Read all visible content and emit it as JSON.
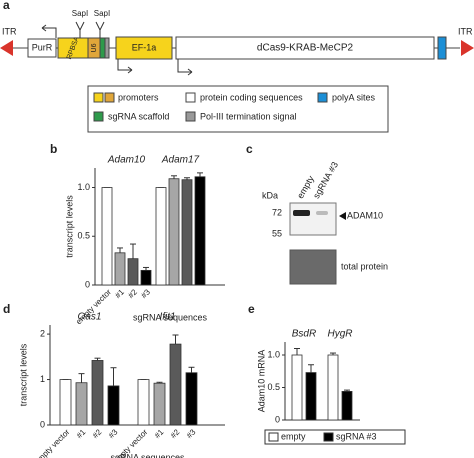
{
  "panel_a": {
    "label": "a",
    "itr_left": "ITR",
    "itr_right": "ITR",
    "sapi": [
      "SapI",
      "SapI"
    ],
    "elements": [
      "PurR",
      "RPBSA",
      "U6",
      "EF-1a",
      "dCas9-KRAB-MeCP2"
    ],
    "legend": [
      "promoters",
      "sgRNA scaffold",
      "protein coding sequences",
      "Pol-III termination signal",
      "polyA sites"
    ]
  },
  "panel_c": {
    "label": "c",
    "kda": "kDa",
    "markers": [
      "72",
      "55"
    ],
    "lanes": [
      "empty",
      "sgRNA #3"
    ],
    "band": "ADAM10",
    "total": "total protein"
  },
  "chart_data": [
    {
      "type": "bar",
      "panel": "b",
      "ylabel": "transcript levels",
      "xlabel": "sgRNA sequences",
      "categories": [
        "Adam10",
        "Adam17"
      ],
      "series": [
        {
          "name": "empty vector",
          "color": "#ffffff",
          "values": [
            1.0,
            1.0
          ],
          "errors": [
            0,
            0
          ]
        },
        {
          "name": "#1",
          "color": "#a6a6a6",
          "values": [
            0.33,
            1.09
          ],
          "errors": [
            0.05,
            0.03
          ]
        },
        {
          "name": "#2",
          "color": "#5a5a5a",
          "values": [
            0.27,
            1.08
          ],
          "errors": [
            0.15,
            0.02
          ]
        },
        {
          "name": "#3",
          "color": "#000000",
          "values": [
            0.15,
            1.11
          ],
          "errors": [
            0.03,
            0.04
          ]
        }
      ],
      "ylim": [
        0,
        1.2
      ],
      "yticks": [
        0,
        0.5,
        {
          "value": 1,
          "label": "1.0"
        }
      ]
    },
    {
      "type": "bar",
      "panel": "d",
      "ylabel": "transcript levels",
      "xlabel": "sgRNA sequences",
      "categories": [
        "Oas1",
        "Ifit1"
      ],
      "series": [
        {
          "name": "empty vector",
          "color": "#ffffff",
          "values": [
            1.0,
            1.0
          ],
          "errors": [
            0,
            0
          ]
        },
        {
          "name": "#1",
          "color": "#a6a6a6",
          "values": [
            0.93,
            0.92
          ],
          "errors": [
            0.2,
            0.02
          ]
        },
        {
          "name": "#2",
          "color": "#5a5a5a",
          "values": [
            1.42,
            1.78
          ],
          "errors": [
            0.05,
            0.2
          ]
        },
        {
          "name": "#3",
          "color": "#000000",
          "values": [
            0.86,
            1.15
          ],
          "errors": [
            0.4,
            0.12
          ]
        }
      ],
      "ylim": [
        0,
        2.2
      ],
      "yticks": [
        0,
        1,
        2
      ]
    },
    {
      "type": "bar",
      "panel": "e",
      "ylabel": "Adam10 mRNA",
      "categories": [
        "BsdR",
        "HygR"
      ],
      "series": [
        {
          "name": "empty",
          "color": "#ffffff",
          "values": [
            1.0,
            1.0
          ],
          "errors": [
            0.1,
            0.03
          ]
        },
        {
          "name": "sgRNA #3",
          "color": "#000000",
          "values": [
            0.73,
            0.44
          ],
          "errors": [
            0.12,
            0.02
          ]
        }
      ],
      "ylim": [
        0,
        1.2
      ],
      "yticks": [
        0,
        0.5,
        {
          "value": 1,
          "label": "1.0"
        }
      ],
      "legend": "bottom"
    }
  ]
}
